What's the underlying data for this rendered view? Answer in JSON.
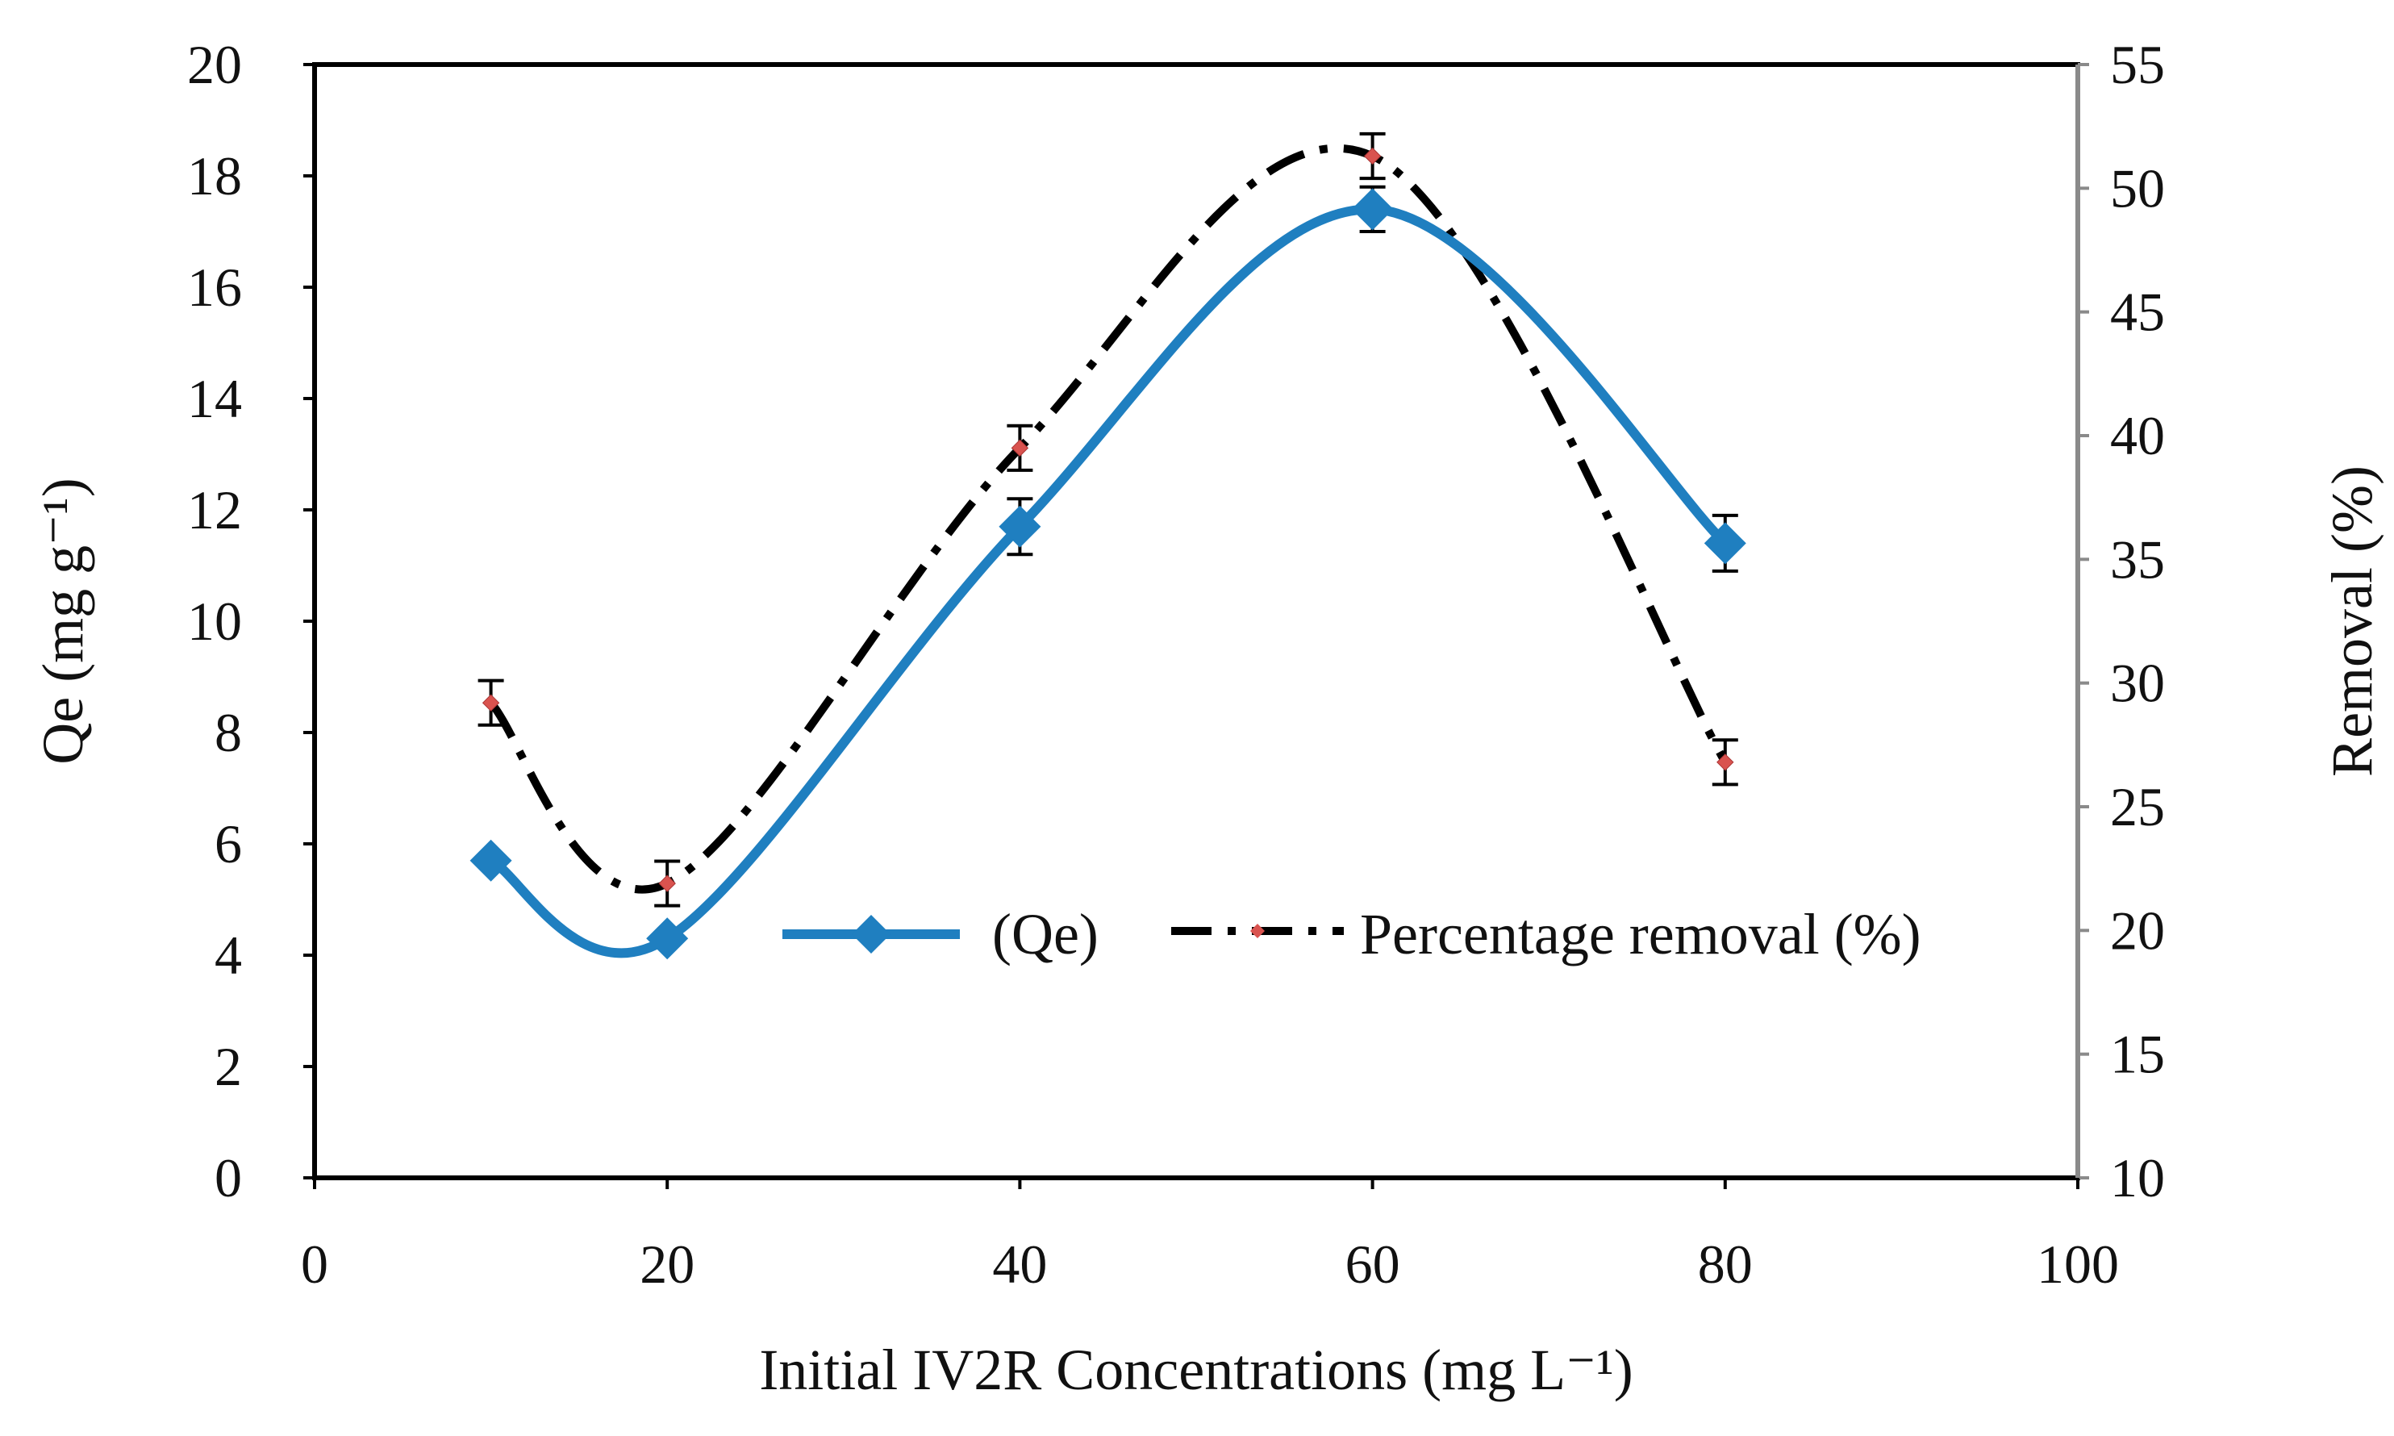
{
  "chart_data": {
    "type": "line",
    "xlabel": "Initial  IV2R Concentrations (mg L⁻¹)",
    "ylabel": "Qe (mg g⁻¹)",
    "y2label": "Removal (%)",
    "xlim": [
      0,
      100
    ],
    "ylim": [
      0,
      20
    ],
    "y2lim": [
      10,
      55
    ],
    "xticks": [
      "0",
      "20",
      "40",
      "60",
      "80",
      "100"
    ],
    "yticks": [
      "0",
      "2",
      "4",
      "6",
      "8",
      "10",
      "12",
      "14",
      "16",
      "18",
      "20"
    ],
    "y2ticks": [
      "10",
      "15",
      "20",
      "25",
      "30",
      "35",
      "40",
      "45",
      "50",
      "55"
    ],
    "grid": false,
    "legend_position": "center-right",
    "series": [
      {
        "name": "(Qe)",
        "axis": "left",
        "style": "smooth-solid",
        "color": "#1f7fc0",
        "marker": "diamond",
        "x": [
          10,
          20,
          40,
          60,
          80
        ],
        "y": [
          5.7,
          4.3,
          11.7,
          17.4,
          11.4
        ],
        "error": [
          0.0,
          0.0,
          0.5,
          0.4,
          0.5
        ]
      },
      {
        "name": "Percentage removal (%)",
        "axis": "right",
        "style": "smooth-dashdot",
        "color": "#000000",
        "marker_color": "#d9534f",
        "marker": "small-diamond",
        "x": [
          10,
          20,
          40,
          60,
          80
        ],
        "y": [
          29.2,
          21.9,
          39.5,
          51.3,
          26.8
        ],
        "error": [
          0.9,
          0.9,
          0.9,
          0.9,
          0.9
        ]
      }
    ]
  }
}
